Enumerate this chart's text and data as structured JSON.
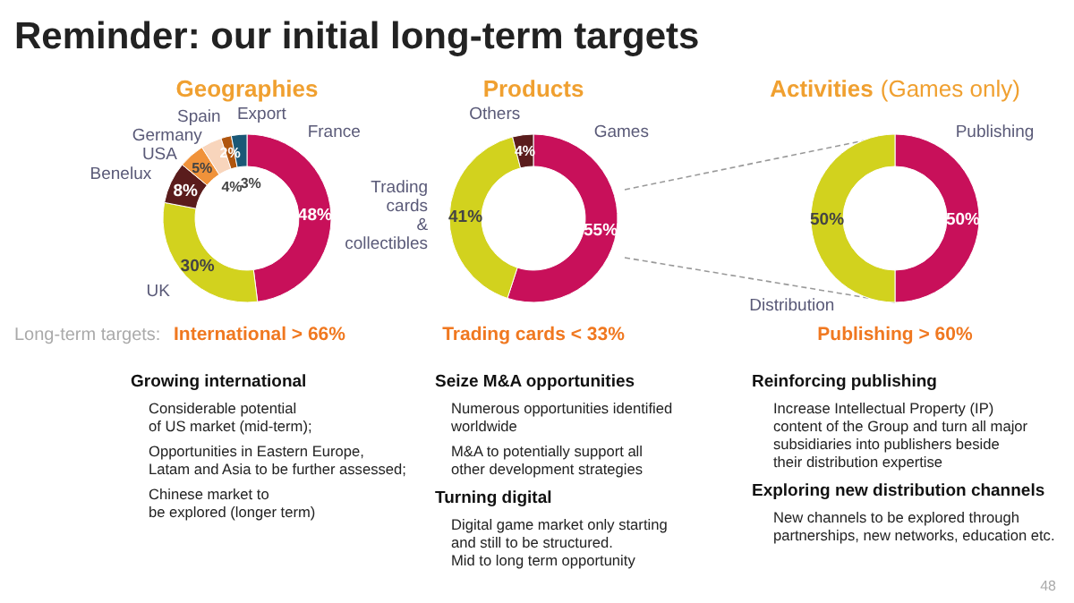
{
  "chart_data": [
    {
      "type": "other",
      "title": "Reminder: our initial long-term targets",
      "annotations": [
        "Long-term targets:",
        "48"
      ]
    },
    {
      "type": "donut",
      "title": "Geographies",
      "categories": [
        "France",
        "UK",
        "Benelux",
        "USA",
        "Germany",
        "Spain",
        "Export"
      ],
      "values": [
        48,
        30,
        8,
        5,
        4,
        2,
        3
      ],
      "colors": [
        "#c8105a",
        "#d2d21e",
        "#5a1c1c",
        "#f0923a",
        "#f8d5bc",
        "#b0560f",
        "#1b5876"
      ],
      "value_labels": [
        "48%",
        "30%",
        "8%",
        "5%",
        "4%",
        "2%",
        "3%"
      ],
      "annotations": [
        "International > 66%"
      ]
    },
    {
      "type": "donut",
      "title": "Products",
      "categories": [
        "Games",
        "Trading\ncards\n&\ncollectibles",
        "Others"
      ],
      "values": [
        55,
        41,
        4
      ],
      "colors": [
        "#c8105a",
        "#d2d21e",
        "#5a1c1c"
      ],
      "value_labels": [
        "55%",
        "41%",
        "4%"
      ],
      "annotations": [
        "Trading cards < 33%"
      ]
    },
    {
      "type": "donut",
      "title": "Activities",
      "subtitle": "(Games only)",
      "categories": [
        "Publishing",
        "Distribution"
      ],
      "values": [
        50,
        50
      ],
      "colors": [
        "#c8105a",
        "#d2d21e"
      ],
      "value_labels": [
        "50%",
        "50%"
      ],
      "annotations": [
        "Publishing > 60%"
      ]
    },
    {
      "type": "other",
      "title": "Growing international",
      "annotations": [
        "Considerable potential\nof US market (mid-term);",
        "Opportunities in Eastern Europe,\nLatam and Asia to be further assessed;",
        "Chinese market to\nbe explored (longer term)"
      ]
    },
    {
      "type": "other",
      "title": "Seize M&A opportunities",
      "annotations": [
        "Numerous opportunities identified\nworldwide",
        "M&A to potentially support all\nother development strategies"
      ]
    },
    {
      "type": "other",
      "title": "Turning digital",
      "annotations": [
        "Digital game market only starting\nand still to be structured.\nMid to long term opportunity"
      ]
    },
    {
      "type": "other",
      "title": "Reinforcing publishing",
      "annotations": [
        "Increase Intellectual Property (IP)\ncontent of the Group and turn all major\nsubsidiaries into publishers beside\ntheir distribution expertise"
      ]
    },
    {
      "type": "other",
      "title": "Exploring new distribution channels",
      "annotations": [
        "New channels to be explored through\npartnerships, new networks, education etc."
      ]
    }
  ]
}
